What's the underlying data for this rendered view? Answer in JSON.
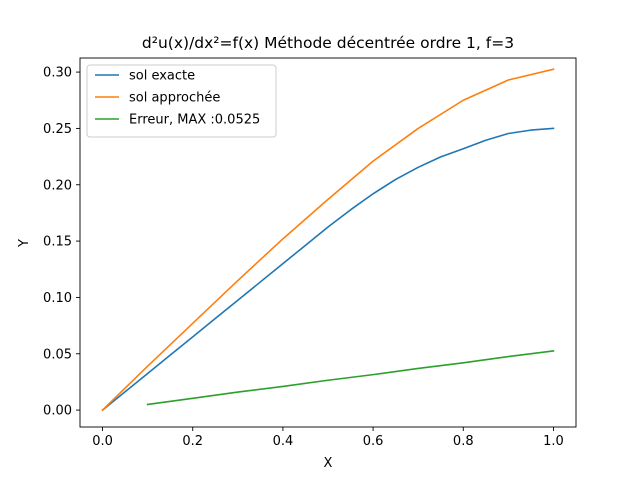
{
  "chart_data": {
    "type": "line",
    "title": "d²u(x)/dx²=f(x) Méthode décentrée ordre 1, f=3",
    "xlabel": "X",
    "ylabel": "Y",
    "xlim": [
      -0.05,
      1.05
    ],
    "ylim": [
      -0.015,
      0.3125
    ],
    "xticks": [
      0.0,
      0.2,
      0.4,
      0.6,
      0.8,
      1.0
    ],
    "xtick_labels": [
      "0.0",
      "0.2",
      "0.4",
      "0.6",
      "0.8",
      "1.0"
    ],
    "yticks": [
      0.0,
      0.05,
      0.1,
      0.15,
      0.2,
      0.25,
      0.3
    ],
    "ytick_labels": [
      "0.00",
      "0.05",
      "0.10",
      "0.15",
      "0.20",
      "0.25",
      "0.30"
    ],
    "grid": false,
    "legend_position": "top-left",
    "series": [
      {
        "name": "sol exacte",
        "color": "#1f77b4",
        "x": [
          0.0,
          0.05,
          0.1,
          0.15,
          0.2,
          0.25,
          0.3,
          0.35,
          0.4,
          0.45,
          0.5,
          0.55,
          0.6,
          0.65,
          0.7,
          0.75,
          0.8,
          0.85,
          0.9,
          0.95,
          1.0
        ],
        "y": [
          0.0,
          0.01625,
          0.0325,
          0.04875,
          0.065,
          0.08125,
          0.0975,
          0.11375,
          0.13,
          0.14625,
          0.1625,
          0.17775,
          0.192,
          0.2047,
          0.2155,
          0.22475,
          0.232,
          0.2395,
          0.2455,
          0.2485,
          0.25
        ]
      },
      {
        "name": "sol approchée",
        "color": "#ff7f0e",
        "x": [
          0.0,
          0.1,
          0.2,
          0.3,
          0.4,
          0.5,
          0.6,
          0.7,
          0.8,
          0.9,
          1.0
        ],
        "y": [
          0.0,
          0.039,
          0.077,
          0.115,
          0.152,
          0.187,
          0.221,
          0.25,
          0.275,
          0.293,
          0.3025
        ]
      },
      {
        "name": "Erreur, MAX :0.0525",
        "color": "#2ca02c",
        "x": [
          0.1,
          0.2,
          0.3,
          0.4,
          0.5,
          0.6,
          0.7,
          0.8,
          0.9,
          1.0
        ],
        "y": [
          0.005,
          0.0105,
          0.016,
          0.021,
          0.0265,
          0.0315,
          0.037,
          0.042,
          0.0475,
          0.0525
        ]
      }
    ]
  }
}
